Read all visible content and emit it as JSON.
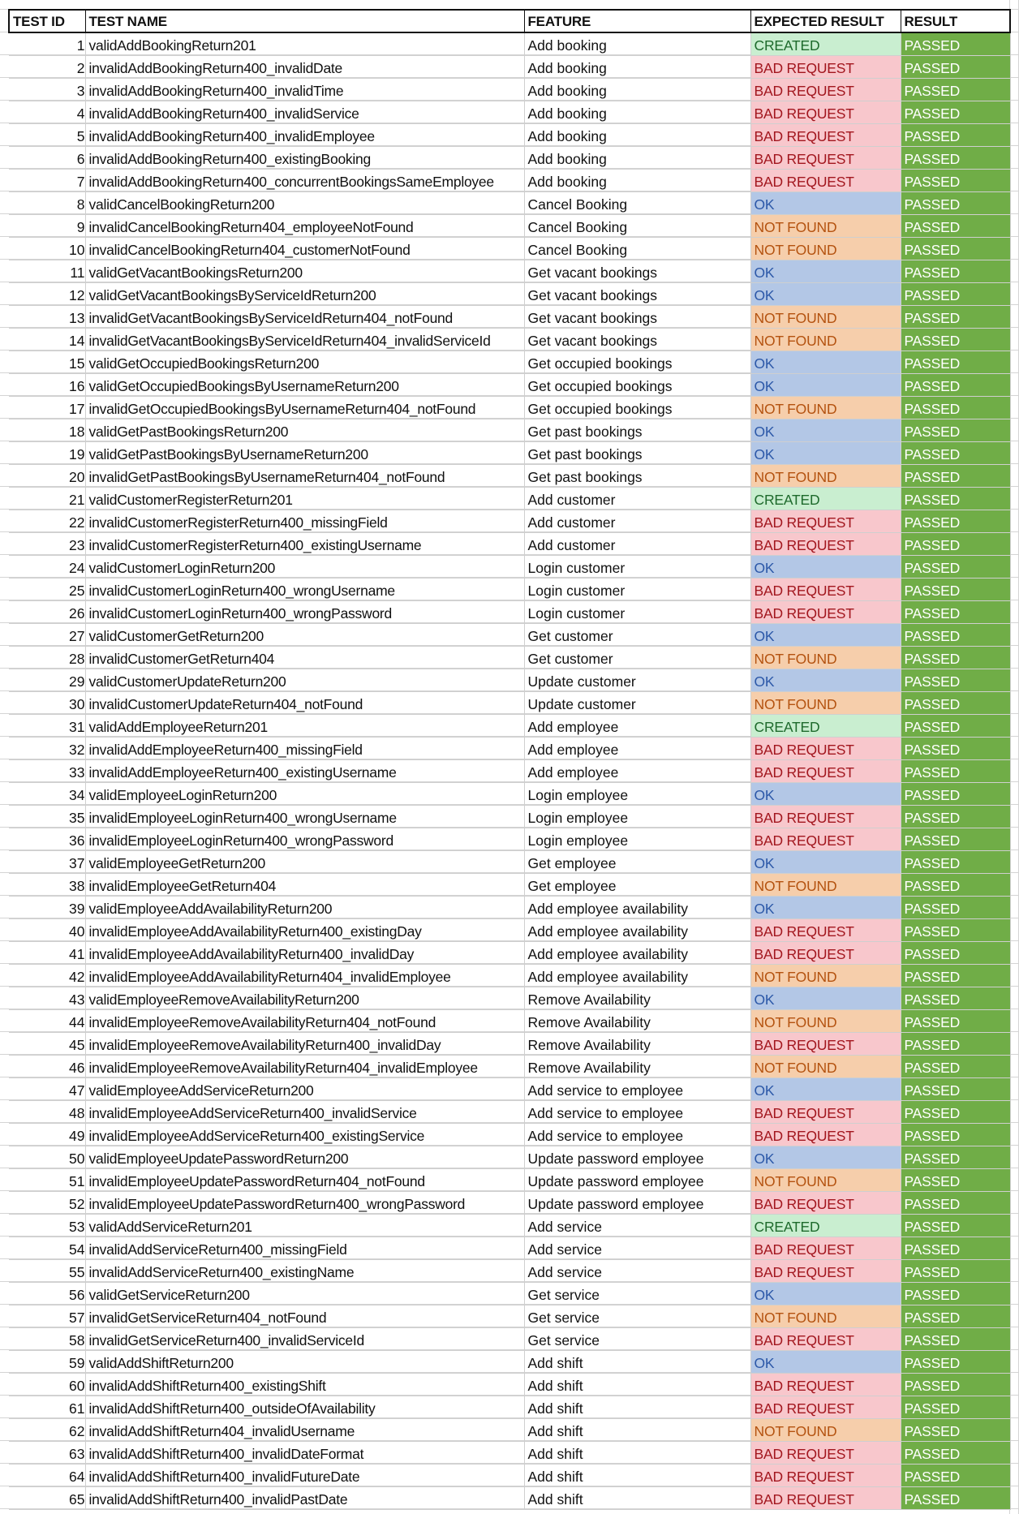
{
  "headers": {
    "id": "TEST ID",
    "name": "TEST NAME",
    "feature": "FEATURE",
    "expected": "EXPECTED RESULT",
    "result": "RESULT"
  },
  "colors": {
    "CREATED": {
      "bg": "#c9eed0",
      "fg": "#1e6a2c"
    },
    "BAD REQUEST": {
      "bg": "#f8c7cc",
      "fg": "#a2161e"
    },
    "OK": {
      "bg": "#b3c7e6",
      "fg": "#2c58a8"
    },
    "NOT FOUND": {
      "bg": "#f6ceab",
      "fg": "#b4520f"
    },
    "PASSED": {
      "bg": "#70ad47",
      "fg": "#ffffff"
    }
  },
  "rows": [
    {
      "id": "1",
      "name": "validAddBookingReturn201",
      "feature": "Add booking",
      "expected": "CREATED",
      "result": "PASSED"
    },
    {
      "id": "2",
      "name": "invalidAddBookingReturn400_invalidDate",
      "feature": "Add booking",
      "expected": "BAD REQUEST",
      "result": "PASSED"
    },
    {
      "id": "3",
      "name": "invalidAddBookingReturn400_invalidTime",
      "feature": "Add booking",
      "expected": "BAD REQUEST",
      "result": "PASSED"
    },
    {
      "id": "4",
      "name": "invalidAddBookingReturn400_invalidService",
      "feature": "Add booking",
      "expected": "BAD REQUEST",
      "result": "PASSED"
    },
    {
      "id": "5",
      "name": "invalidAddBookingReturn400_invalidEmployee",
      "feature": "Add booking",
      "expected": "BAD REQUEST",
      "result": "PASSED"
    },
    {
      "id": "6",
      "name": "invalidAddBookingReturn400_existingBooking",
      "feature": "Add booking",
      "expected": "BAD REQUEST",
      "result": "PASSED"
    },
    {
      "id": "7",
      "name": "invalidAddBookingReturn400_concurrentBookingsSameEmployee",
      "feature": "Add booking",
      "expected": "BAD REQUEST",
      "result": "PASSED"
    },
    {
      "id": "8",
      "name": "validCancelBookingReturn200",
      "feature": "Cancel Booking",
      "expected": "OK",
      "result": "PASSED"
    },
    {
      "id": "9",
      "name": "invalidCancelBookingReturn404_employeeNotFound",
      "feature": "Cancel Booking",
      "expected": "NOT FOUND",
      "result": "PASSED"
    },
    {
      "id": "10",
      "name": "invalidCancelBookingReturn404_customerNotFound",
      "feature": "Cancel Booking",
      "expected": "NOT FOUND",
      "result": "PASSED"
    },
    {
      "id": "11",
      "name": "validGetVacantBookingsReturn200",
      "feature": "Get vacant bookings",
      "expected": "OK",
      "result": "PASSED"
    },
    {
      "id": "12",
      "name": "validGetVacantBookingsByServiceIdReturn200",
      "feature": "Get vacant bookings",
      "expected": "OK",
      "result": "PASSED"
    },
    {
      "id": "13",
      "name": "invalidGetVacantBookingsByServiceIdReturn404_notFound",
      "feature": "Get vacant bookings",
      "expected": "NOT FOUND",
      "result": "PASSED"
    },
    {
      "id": "14",
      "name": "invalidGetVacantBookingsByServiceIdReturn404_invalidServiceId",
      "feature": "Get vacant bookings",
      "expected": "NOT FOUND",
      "result": "PASSED"
    },
    {
      "id": "15",
      "name": "validGetOccupiedBookingsReturn200",
      "feature": "Get occupied bookings",
      "expected": "OK",
      "result": "PASSED"
    },
    {
      "id": "16",
      "name": "validGetOccupiedBookingsByUsernameReturn200",
      "feature": "Get occupied bookings",
      "expected": "OK",
      "result": "PASSED"
    },
    {
      "id": "17",
      "name": "invalidGetOccupiedBookingsByUsernameReturn404_notFound",
      "feature": "Get occupied bookings",
      "expected": "NOT FOUND",
      "result": "PASSED"
    },
    {
      "id": "18",
      "name": "validGetPastBookingsReturn200",
      "feature": "Get past bookings",
      "expected": "OK",
      "result": "PASSED"
    },
    {
      "id": "19",
      "name": "validGetPastBookingsByUsernameReturn200",
      "feature": "Get past bookings",
      "expected": "OK",
      "result": "PASSED"
    },
    {
      "id": "20",
      "name": "invalidGetPastBookingsByUsernameReturn404_notFound",
      "feature": "Get past bookings",
      "expected": "NOT FOUND",
      "result": "PASSED"
    },
    {
      "id": "21",
      "name": "validCustomerRegisterReturn201",
      "feature": "Add customer",
      "expected": "CREATED",
      "result": "PASSED"
    },
    {
      "id": "22",
      "name": "invalidCustomerRegisterReturn400_missingField",
      "feature": "Add customer",
      "expected": "BAD REQUEST",
      "result": "PASSED"
    },
    {
      "id": "23",
      "name": "invalidCustomerRegisterReturn400_existingUsername",
      "feature": "Add customer",
      "expected": "BAD REQUEST",
      "result": "PASSED"
    },
    {
      "id": "24",
      "name": "validCustomerLoginReturn200",
      "feature": "Login customer",
      "expected": "OK",
      "result": "PASSED"
    },
    {
      "id": "25",
      "name": "invalidCustomerLoginReturn400_wrongUsername",
      "feature": "Login customer",
      "expected": "BAD REQUEST",
      "result": "PASSED"
    },
    {
      "id": "26",
      "name": "invalidCustomerLoginReturn400_wrongPassword",
      "feature": "Login customer",
      "expected": "BAD REQUEST",
      "result": "PASSED"
    },
    {
      "id": "27",
      "name": "validCustomerGetReturn200",
      "feature": "Get customer",
      "expected": "OK",
      "result": "PASSED"
    },
    {
      "id": "28",
      "name": "invalidCustomerGetReturn404",
      "feature": "Get customer",
      "expected": "NOT FOUND",
      "result": "PASSED"
    },
    {
      "id": "29",
      "name": "validCustomerUpdateReturn200",
      "feature": "Update customer",
      "expected": "OK",
      "result": "PASSED"
    },
    {
      "id": "30",
      "name": "invalidCustomerUpdateReturn404_notFound",
      "feature": "Update customer",
      "expected": "NOT FOUND",
      "result": "PASSED"
    },
    {
      "id": "31",
      "name": "validAddEmployeeReturn201",
      "feature": "Add employee",
      "expected": "CREATED",
      "result": "PASSED"
    },
    {
      "id": "32",
      "name": "invalidAddEmployeeReturn400_missingField",
      "feature": "Add employee",
      "expected": "BAD REQUEST",
      "result": "PASSED"
    },
    {
      "id": "33",
      "name": "invalidAddEmployeeReturn400_existingUsername",
      "feature": "Add employee",
      "expected": "BAD REQUEST",
      "result": "PASSED"
    },
    {
      "id": "34",
      "name": "validEmployeeLoginReturn200",
      "feature": "Login employee",
      "expected": "OK",
      "result": "PASSED"
    },
    {
      "id": "35",
      "name": "invalidEmployeeLoginReturn400_wrongUsername",
      "feature": "Login employee",
      "expected": "BAD REQUEST",
      "result": "PASSED"
    },
    {
      "id": "36",
      "name": "invalidEmployeeLoginReturn400_wrongPassword",
      "feature": "Login employee",
      "expected": "BAD REQUEST",
      "result": "PASSED"
    },
    {
      "id": "37",
      "name": "validEmployeeGetReturn200",
      "feature": "Get employee",
      "expected": "OK",
      "result": "PASSED"
    },
    {
      "id": "38",
      "name": "invalidEmployeeGetReturn404",
      "feature": "Get employee",
      "expected": "NOT FOUND",
      "result": "PASSED"
    },
    {
      "id": "39",
      "name": "validEmployeeAddAvailabilityReturn200",
      "feature": "Add employee availability",
      "expected": "OK",
      "result": "PASSED"
    },
    {
      "id": "40",
      "name": "invalidEmployeeAddAvailabilityReturn400_existingDay",
      "feature": "Add employee availability",
      "expected": "BAD REQUEST",
      "result": "PASSED"
    },
    {
      "id": "41",
      "name": "invalidEmployeeAddAvailabilityReturn400_invalidDay",
      "feature": "Add employee availability",
      "expected": "BAD REQUEST",
      "result": "PASSED"
    },
    {
      "id": "42",
      "name": "invalidEmployeeAddAvailabilityReturn404_invalidEmployee",
      "feature": "Add employee availability",
      "expected": "NOT FOUND",
      "result": "PASSED"
    },
    {
      "id": "43",
      "name": "validEmployeeRemoveAvailabilityReturn200",
      "feature": "Remove Availability",
      "expected": "OK",
      "result": "PASSED"
    },
    {
      "id": "44",
      "name": "invalidEmployeeRemoveAvailabilityReturn404_notFound",
      "feature": "Remove Availability",
      "expected": "NOT FOUND",
      "result": "PASSED"
    },
    {
      "id": "45",
      "name": "invalidEmployeeRemoveAvailabilityReturn400_invalidDay",
      "feature": "Remove Availability",
      "expected": "BAD REQUEST",
      "result": "PASSED"
    },
    {
      "id": "46",
      "name": "invalidEmployeeRemoveAvailabilityReturn404_invalidEmployee",
      "feature": "Remove Availability",
      "expected": "NOT FOUND",
      "result": "PASSED"
    },
    {
      "id": "47",
      "name": "validEmployeeAddServiceReturn200",
      "feature": "Add service to employee",
      "expected": "OK",
      "result": "PASSED"
    },
    {
      "id": "48",
      "name": "invalidEmployeeAddServiceReturn400_invalidService",
      "feature": "Add service to employee",
      "expected": "BAD REQUEST",
      "result": "PASSED"
    },
    {
      "id": "49",
      "name": "invalidEmployeeAddServiceReturn400_existingService",
      "feature": "Add service to employee",
      "expected": "BAD REQUEST",
      "result": "PASSED"
    },
    {
      "id": "50",
      "name": "validEmployeeUpdatePasswordReturn200",
      "feature": "Update password employee",
      "expected": "OK",
      "result": "PASSED"
    },
    {
      "id": "51",
      "name": "invalidEmployeeUpdatePasswordReturn404_notFound",
      "feature": "Update password employee",
      "expected": "NOT FOUND",
      "result": "PASSED"
    },
    {
      "id": "52",
      "name": "invalidEmployeeUpdatePasswordReturn400_wrongPassword",
      "feature": "Update password employee",
      "expected": "BAD REQUEST",
      "result": "PASSED"
    },
    {
      "id": "53",
      "name": "validAddServiceReturn201",
      "feature": "Add service",
      "expected": "CREATED",
      "result": "PASSED"
    },
    {
      "id": "54",
      "name": "invalidAddServiceReturn400_missingField",
      "feature": "Add service",
      "expected": "BAD REQUEST",
      "result": "PASSED"
    },
    {
      "id": "55",
      "name": "invalidAddServiceReturn400_existingName",
      "feature": "Add service",
      "expected": "BAD REQUEST",
      "result": "PASSED"
    },
    {
      "id": "56",
      "name": "validGetServiceReturn200",
      "feature": "Get service",
      "expected": "OK",
      "result": "PASSED"
    },
    {
      "id": "57",
      "name": "invalidGetServiceReturn404_notFound",
      "feature": "Get service",
      "expected": "NOT FOUND",
      "result": "PASSED"
    },
    {
      "id": "58",
      "name": "invalidGetServiceReturn400_invalidServiceId",
      "feature": "Get service",
      "expected": "BAD REQUEST",
      "result": "PASSED"
    },
    {
      "id": "59",
      "name": "validAddShiftReturn200",
      "feature": "Add shift",
      "expected": "OK",
      "result": "PASSED"
    },
    {
      "id": "60",
      "name": "invalidAddShiftReturn400_existingShift",
      "feature": "Add shift",
      "expected": "BAD REQUEST",
      "result": "PASSED"
    },
    {
      "id": "61",
      "name": "invalidAddShiftReturn400_outsideOfAvailability",
      "feature": "Add shift",
      "expected": "BAD REQUEST",
      "result": "PASSED"
    },
    {
      "id": "62",
      "name": "invalidAddShiftReturn404_invalidUsername",
      "feature": "Add shift",
      "expected": "NOT FOUND",
      "result": "PASSED"
    },
    {
      "id": "63",
      "name": "invalidAddShiftReturn400_invalidDateFormat",
      "feature": "Add shift",
      "expected": "BAD REQUEST",
      "result": "PASSED"
    },
    {
      "id": "64",
      "name": "invalidAddShiftReturn400_invalidFutureDate",
      "feature": "Add shift",
      "expected": "BAD REQUEST",
      "result": "PASSED"
    },
    {
      "id": "65",
      "name": "invalidAddShiftReturn400_invalidPastDate",
      "feature": "Add shift",
      "expected": "BAD REQUEST",
      "result": "PASSED"
    }
  ]
}
